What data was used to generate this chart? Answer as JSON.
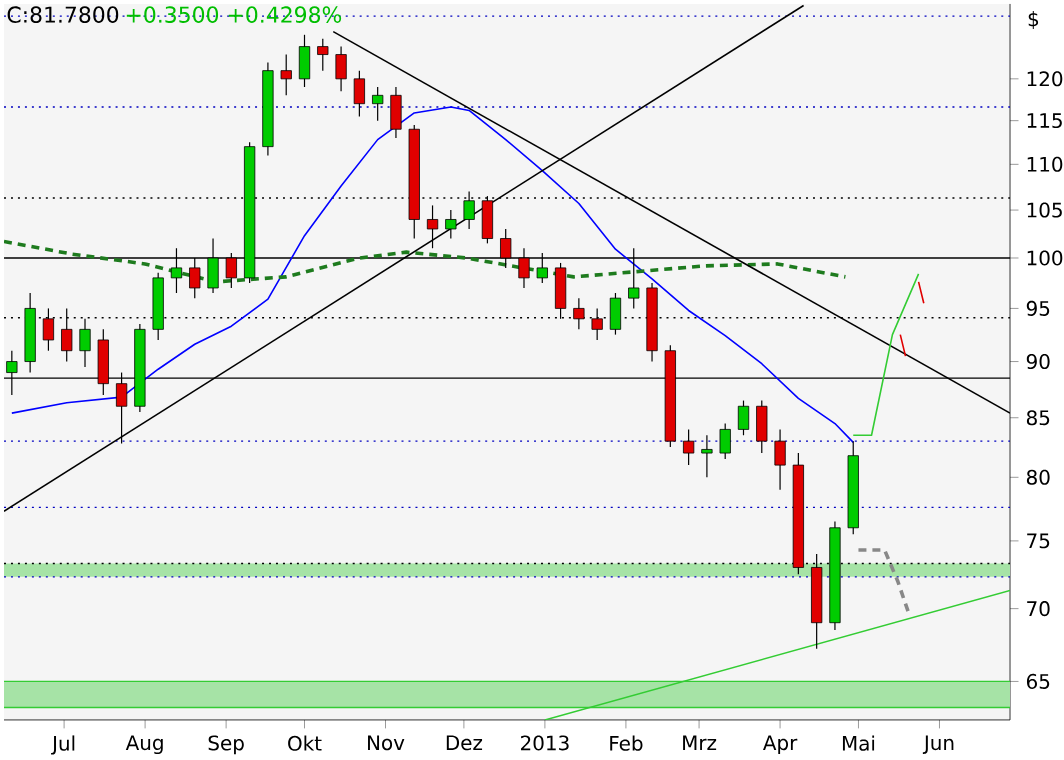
{
  "chart_data": {
    "type": "candlestick",
    "title": "C:81.7800",
    "subtitle": "+0.3500 +0.4298%",
    "ylabel": "$",
    "log": "y",
    "x": [
      "2012-06-11",
      "2012-06-18",
      "2012-06-25",
      "2012-07-02",
      "2012-07-09",
      "2012-07-16",
      "2012-07-23",
      "2012-07-30",
      "2012-08-06",
      "2012-08-13",
      "2012-08-20",
      "2012-08-27",
      "2012-09-03",
      "2012-09-10",
      "2012-09-17",
      "2012-09-24",
      "2012-10-01",
      "2012-10-08",
      "2012-10-15",
      "2012-10-22",
      "2012-10-29",
      "2012-11-05",
      "2012-11-12",
      "2012-11-19",
      "2012-11-26",
      "2012-12-03",
      "2012-12-10",
      "2012-12-17",
      "2012-12-24",
      "2012-12-31",
      "2013-01-07",
      "2013-01-14",
      "2013-01-21",
      "2013-01-28",
      "2013-02-04",
      "2013-02-11",
      "2013-02-18",
      "2013-02-25",
      "2013-03-04",
      "2013-03-11",
      "2013-03-18",
      "2013-03-25",
      "2013-04-01",
      "2013-04-08",
      "2013-04-15",
      "2013-04-22",
      "2013-04-29"
    ],
    "ohlc": [
      [
        89,
        91,
        87,
        90
      ],
      [
        90,
        96.5,
        89,
        95
      ],
      [
        94,
        95,
        91,
        92
      ],
      [
        93,
        95,
        90,
        91
      ],
      [
        91,
        94,
        89.5,
        93
      ],
      [
        92,
        93,
        87,
        88
      ],
      [
        88,
        89,
        82.8,
        86
      ],
      [
        86,
        93.5,
        85.5,
        93
      ],
      [
        93,
        98.5,
        92,
        98
      ],
      [
        98,
        101,
        96.5,
        99
      ],
      [
        99,
        100,
        96,
        97
      ],
      [
        97,
        102,
        96.5,
        100
      ],
      [
        100,
        100.5,
        97,
        98
      ],
      [
        98,
        112.5,
        97.5,
        112
      ],
      [
        112,
        122,
        111,
        121
      ],
      [
        121,
        123,
        118,
        120
      ],
      [
        120,
        125.5,
        119,
        124
      ],
      [
        124,
        125,
        121,
        123
      ],
      [
        123,
        124,
        118.5,
        120
      ],
      [
        120,
        121,
        115.5,
        117
      ],
      [
        117,
        119,
        115,
        118
      ],
      [
        118,
        119,
        113,
        114
      ],
      [
        114,
        114.5,
        102,
        104
      ],
      [
        104,
        105.5,
        101,
        103
      ],
      [
        103,
        105,
        102,
        104
      ],
      [
        104,
        107,
        103,
        106
      ],
      [
        106,
        106.5,
        101.5,
        102
      ],
      [
        102,
        103,
        99,
        100
      ],
      [
        100,
        101,
        97,
        98
      ],
      [
        98,
        100.5,
        97.5,
        99
      ],
      [
        99,
        99.5,
        94,
        95
      ],
      [
        95,
        96,
        93,
        94
      ],
      [
        94,
        95,
        92,
        93
      ],
      [
        93,
        96.5,
        92.5,
        96
      ],
      [
        96,
        101,
        95,
        97
      ],
      [
        97,
        97.5,
        90,
        91
      ],
      [
        91,
        91.5,
        82.5,
        83
      ],
      [
        83,
        84,
        81,
        82
      ],
      [
        82,
        83.5,
        80,
        82.3
      ],
      [
        82,
        84.5,
        81.5,
        84
      ],
      [
        84,
        86.5,
        83.5,
        86
      ],
      [
        86,
        86.5,
        82,
        83
      ],
      [
        83,
        84,
        79,
        81
      ],
      [
        81,
        82,
        72.5,
        73
      ],
      [
        73,
        74,
        67.2,
        69
      ],
      [
        69,
        76.5,
        68.5,
        76
      ],
      [
        76,
        83,
        75.5,
        81.78
      ]
    ],
    "colors": [
      "#00cc00",
      "#00cc00",
      "#e00000",
      "#e00000",
      "#00cc00",
      "#e00000",
      "#e00000",
      "#00cc00",
      "#00cc00",
      "#00cc00",
      "#e00000",
      "#00cc00",
      "#e00000",
      "#00cc00",
      "#00cc00",
      "#e00000",
      "#00cc00",
      "#e00000",
      "#e00000",
      "#e00000",
      "#00cc00",
      "#e00000",
      "#e00000",
      "#e00000",
      "#00cc00",
      "#00cc00",
      "#e00000",
      "#e00000",
      "#e00000",
      "#00cc00",
      "#e00000",
      "#e00000",
      "#e00000",
      "#00cc00",
      "#00cc00",
      "#e00000",
      "#e00000",
      "#e00000",
      "#00cc00",
      "#00cc00",
      "#00cc00",
      "#e00000",
      "#e00000",
      "#e00000",
      "#e00000",
      "#00cc00",
      "#00cc00"
    ],
    "series": [
      {
        "type": "line",
        "color": "#0000ff",
        "x": [
          "2012-06-11",
          "2012-07-02",
          "2012-07-23",
          "2012-08-06",
          "2012-08-20",
          "2012-09-03",
          "2012-09-17",
          "2012-10-01",
          "2012-10-15",
          "2012-10-29",
          "2012-11-12",
          "2012-11-26",
          "2012-12-03",
          "2012-12-17",
          "2012-12-31",
          "2013-01-14",
          "2013-01-28",
          "2013-02-11",
          "2013-02-25",
          "2013-03-11",
          "2013-03-25",
          "2013-04-08",
          "2013-04-22",
          "2013-04-29"
        ],
        "values": [
          85.4,
          86.3,
          86.8,
          89.3,
          91.6,
          93.3,
          95.9,
          102.3,
          107.6,
          112.8,
          115.9,
          116.6,
          116.2,
          112.8,
          109.3,
          105.7,
          100.9,
          97.9,
          94.8,
          92.4,
          89.8,
          86.7,
          84.5,
          82.9
        ]
      },
      {
        "type": "line",
        "color": "#1e7b1e",
        "line_style": "dashed",
        "x": [
          "2012-06-08",
          "2012-07-04",
          "2012-08-01",
          "2012-08-28",
          "2012-09-24",
          "2012-10-22",
          "2012-11-09",
          "2012-12-02",
          "2013-01-12",
          "2013-03-03",
          "2013-03-31",
          "2013-04-26"
        ],
        "values": [
          101.7,
          100.4,
          99.4,
          97.6,
          98.1,
          100,
          100.6,
          100,
          98.1,
          99.2,
          99.4,
          98.1
        ]
      },
      {
        "type": "line",
        "color": "#000000",
        "x": [
          "2012-06-08",
          "2013-04-10"
        ],
        "values": [
          77.3,
          129.3
        ]
      },
      {
        "type": "line",
        "color": "#000000",
        "x": [
          "2012-10-12",
          "2013-06-28"
        ],
        "values": [
          125.9,
          85.4
        ]
      },
      {
        "type": "line",
        "color": "#33cc33",
        "x": [
          "2013-01-01",
          "2013-06-28"
        ],
        "values": [
          62.5,
          71.3
        ]
      },
      {
        "type": "line",
        "color": "#33cc33",
        "x": [
          "2013-04-29",
          "2013-05-06",
          "2013-05-14",
          "2013-05-24"
        ],
        "values": [
          83.5,
          83.5,
          92.5,
          98.4
        ]
      },
      {
        "type": "line",
        "color": "#888888",
        "line_style": "dashed",
        "x": [
          "2013-05-01",
          "2013-05-11",
          "2013-05-16",
          "2013-05-20"
        ],
        "values": [
          74.3,
          74.3,
          72.0,
          69.8
        ]
      },
      {
        "type": "line",
        "color": "#e00000",
        "x": [
          "2013-05-17",
          "2013-05-19",
          "2013-05-21",
          "2013-05-24",
          "2013-05-26"
        ],
        "values": [
          92.5,
          90.5,
          null,
          97.6,
          95.5
        ]
      }
    ],
    "ref_lines": [
      {
        "axis": "y",
        "value": 100,
        "color": "#000000",
        "line_style": "solid"
      },
      {
        "axis": "y",
        "value": 88.5,
        "color": "#000000",
        "line_style": "solid"
      },
      {
        "axis": "y",
        "value": 106.3,
        "color": "#000000",
        "line_style": "dotted"
      },
      {
        "axis": "y",
        "value": 94.1,
        "color": "#000000",
        "line_style": "dotted"
      },
      {
        "axis": "y",
        "value": 73.3,
        "color": "#000000",
        "line_style": "dotted"
      },
      {
        "axis": "y",
        "value": 127.9,
        "color": "#0000c0",
        "line_style": "dotted"
      },
      {
        "axis": "y",
        "value": 116.6,
        "color": "#0000c0",
        "line_style": "dotted"
      },
      {
        "axis": "y",
        "value": 83,
        "color": "#0000c0",
        "line_style": "dotted"
      },
      {
        "axis": "y",
        "value": 77.6,
        "color": "#0000c0",
        "line_style": "dotted"
      },
      {
        "axis": "y",
        "value": 72.3,
        "color": "#0000c0",
        "line_style": "dotted"
      },
      {
        "axis": "y",
        "value": 65,
        "color": "#33cc33",
        "line_style": "solid"
      },
      {
        "axis": "y",
        "value": 63.3,
        "color": "#33cc33",
        "line_style": "solid"
      }
    ],
    "bands": [
      {
        "axis": "y",
        "from": 72.3,
        "to": 73.3,
        "color": "#a6e3a6"
      },
      {
        "axis": "y",
        "from": 63.3,
        "to": 65,
        "color": "#a6e3a6"
      }
    ],
    "xlim": [
      "2012-06-08",
      "2013-06-28"
    ],
    "xticks": [
      {
        "value": "2012-07-01",
        "label": "Jul"
      },
      {
        "value": "2012-08-01",
        "label": "Aug"
      },
      {
        "value": "2012-09-01",
        "label": "Sep"
      },
      {
        "value": "2012-10-01",
        "label": "Okt"
      },
      {
        "value": "2012-11-01",
        "label": "Nov"
      },
      {
        "value": "2012-12-01",
        "label": "Dez"
      },
      {
        "value": "2013-01-01",
        "label": "2013"
      },
      {
        "value": "2013-02-01",
        "label": "Feb"
      },
      {
        "value": "2013-03-01",
        "label": "Mrz"
      },
      {
        "value": "2013-04-01",
        "label": "Apr"
      },
      {
        "value": "2013-05-01",
        "label": "Mai"
      },
      {
        "value": "2013-06-01",
        "label": "Jun"
      }
    ],
    "ylim": [
      62.5,
      129.5
    ],
    "yticks": [
      65,
      70,
      75,
      80,
      85,
      90,
      95,
      100,
      105,
      110,
      115,
      120
    ]
  }
}
